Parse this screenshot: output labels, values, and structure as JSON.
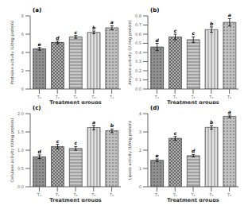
{
  "chart_data": [
    {
      "type": "bar",
      "title": "(a)",
      "xlabel": "Treatment groups",
      "ylabel": "Protease activity (U/mg protein)",
      "categories": [
        "T₀",
        "T₁",
        "T₂",
        "T₃",
        "T₄"
      ],
      "values": [
        4.4,
        5.1,
        5.7,
        6.2,
        6.7
      ],
      "errors": [
        0.15,
        0.15,
        0.15,
        0.15,
        0.22
      ],
      "annotations": [
        "e",
        "d",
        "c",
        "b",
        "a"
      ],
      "colors": [
        "#909090",
        "#b0b0b0",
        "#c8c8c8",
        "#e0e0e0",
        "#c0c0c0"
      ],
      "ylim": [
        0,
        8
      ],
      "yticks": [
        0,
        2,
        4,
        6,
        8
      ],
      "grid": false
    },
    {
      "type": "bar",
      "title": "(b)",
      "xlabel": "Treatment groups",
      "ylabel": "Amylase activity (U /mg protein)",
      "categories": [
        "T₀",
        "T₁",
        "T₂",
        "T₃",
        "T₄"
      ],
      "values": [
        0.46,
        0.57,
        0.54,
        0.65,
        0.73
      ],
      "errors": [
        0.04,
        0.03,
        0.03,
        0.03,
        0.04
      ],
      "annotations": [
        "d",
        "c",
        "c",
        "b",
        "a"
      ],
      "colors": [
        "#909090",
        "#b0b0b0",
        "#c8c8c8",
        "#e0e0e0",
        "#c0c0c0"
      ],
      "ylim": [
        0,
        0.8
      ],
      "yticks": [
        {
          "value": 0,
          "label": "0.0"
        },
        0.1,
        0.2,
        0.3,
        0.4,
        0.5,
        0.6,
        0.7,
        0.8
      ],
      "grid": false
    },
    {
      "type": "bar",
      "title": "(c)",
      "xlabel": "Treatment groups",
      "ylabel": "Cellulase activity (U/mg protein)",
      "categories": [
        "T₀",
        "T₁",
        "T₂",
        "T₃",
        "T₄"
      ],
      "values": [
        0.82,
        1.1,
        1.05,
        1.62,
        1.53
      ],
      "errors": [
        0.05,
        0.06,
        0.05,
        0.06,
        0.05
      ],
      "annotations": [
        "d",
        "c",
        "c",
        "a",
        "b"
      ],
      "colors": [
        "#909090",
        "#b0b0b0",
        "#c8c8c8",
        "#e0e0e0",
        "#c0c0c0"
      ],
      "ylim": [
        0,
        2
      ],
      "yticks": [
        {
          "value": 0,
          "label": "0.0"
        },
        0.5,
        {
          "value": 1,
          "label": "1.0"
        },
        1.5,
        {
          "value": 2,
          "label": "2.0"
        }
      ],
      "grid": false
    },
    {
      "type": "bar",
      "title": "(d)",
      "xlabel": "Treatment groups",
      "ylabel": "Lipase activity (U/mg protein)",
      "categories": [
        "T₀",
        "T₁",
        "T₂",
        "T₃",
        "T₄"
      ],
      "values": [
        1.45,
        2.65,
        1.7,
        3.25,
        3.85
      ],
      "errors": [
        0.07,
        0.1,
        0.07,
        0.1,
        0.07
      ],
      "annotations": [
        "e",
        "c",
        "d",
        "b",
        "a"
      ],
      "colors": [
        "#909090",
        "#b0b0b0",
        "#c8c8c8",
        "#e0e0e0",
        "#c0c0c0"
      ],
      "ylim": [
        0,
        4
      ],
      "yticks": [
        0,
        1,
        2,
        3,
        4
      ],
      "grid": false
    }
  ]
}
